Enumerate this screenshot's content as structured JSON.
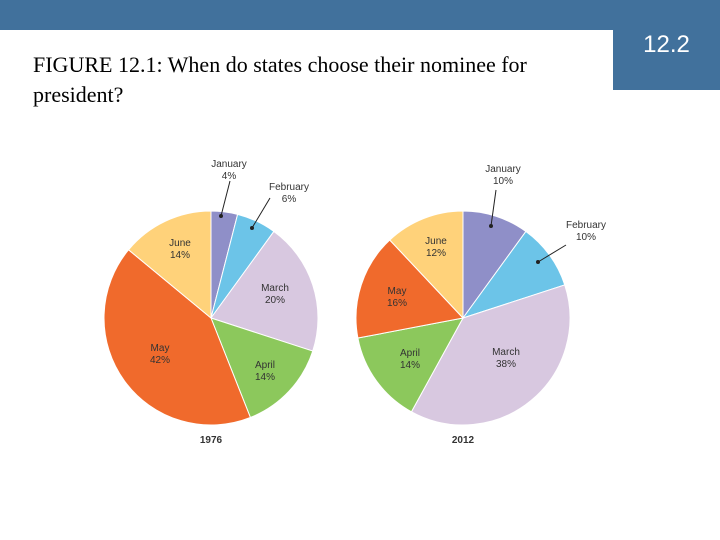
{
  "header": {
    "title": "FIGURE 12.1: When do states choose their nominee for president?",
    "badge": "12.2"
  },
  "chart_data": [
    {
      "type": "pie",
      "title": "1976",
      "slices": [
        {
          "label": "January",
          "value": 4,
          "display": "4%",
          "color": "#8f8fc8"
        },
        {
          "label": "February",
          "value": 6,
          "display": "6%",
          "color": "#6cc4e8"
        },
        {
          "label": "March",
          "value": 20,
          "display": "20%",
          "color": "#d8c8e0"
        },
        {
          "label": "April",
          "value": 14,
          "display": "14%",
          "color": "#8cc85c"
        },
        {
          "label": "May",
          "value": 42,
          "display": "42%",
          "color": "#f06a2c"
        },
        {
          "label": "June",
          "value": 14,
          "display": "14%",
          "color": "#ffd27a"
        }
      ]
    },
    {
      "type": "pie",
      "title": "2012",
      "slices": [
        {
          "label": "January",
          "value": 10,
          "display": "10%",
          "color": "#8f8fc8"
        },
        {
          "label": "February",
          "value": 10,
          "display": "10%",
          "color": "#6cc4e8"
        },
        {
          "label": "March",
          "value": 38,
          "display": "38%",
          "color": "#d8c8e0"
        },
        {
          "label": "April",
          "value": 14,
          "display": "14%",
          "color": "#8cc85c"
        },
        {
          "label": "May",
          "value": 16,
          "display": "16%",
          "color": "#f06a2c"
        },
        {
          "label": "June",
          "value": 12,
          "display": "12%",
          "color": "#ffd27a"
        }
      ]
    }
  ]
}
